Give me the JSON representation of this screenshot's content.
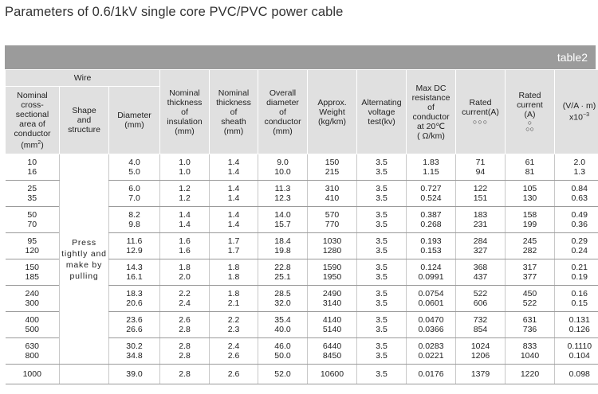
{
  "title": "Parameters of 0.6/1kV single core PVC/PVC power cable",
  "table_tag": "table2",
  "headers": {
    "wire_group": "Wire",
    "nominal_area": "Nominal cross-sectional area of conductor (mm²)",
    "shape": "Shape and structure",
    "diameter": "Diameter (mm)",
    "insulation": "Nominal thickness of insulation (mm)",
    "sheath": "Nominal thickness of sheath (mm)",
    "overall": "Overall diameter of conductor (mm)",
    "weight": "Approx. Weight (kg/km)",
    "voltage": "Alternating voltage test(kv)",
    "resistance": "Max DC resistance of conductor at 20℃ (Ω/km)",
    "rated_current_a": "Rated current(A)",
    "rated_current_b_line1": "Rated current",
    "rated_current_b_line2": "(A)",
    "va_line1": "(V/A · m)",
    "va_line2": "x10⁻³"
  },
  "shape_text": "Press tightly and make by pulling",
  "rows": [
    {
      "area": [
        "10",
        "16"
      ],
      "diameter": [
        "4.0",
        "5.0"
      ],
      "insulation": [
        "1.0",
        "1.0"
      ],
      "sheath": [
        "1.4",
        "1.4"
      ],
      "overall": [
        "9.0",
        "10.0"
      ],
      "weight": [
        "150",
        "215"
      ],
      "voltage": [
        "3.5",
        "3.5"
      ],
      "resistance": [
        "1.83",
        "1.15"
      ],
      "current_a": [
        "71",
        "94"
      ],
      "current_b": [
        "61",
        "81"
      ],
      "va": [
        "2.0",
        "1.3"
      ]
    },
    {
      "area": [
        "25",
        "35"
      ],
      "diameter": [
        "6.0",
        "7.0"
      ],
      "insulation": [
        "1.2",
        "1.2"
      ],
      "sheath": [
        "1.4",
        "1.4"
      ],
      "overall": [
        "11.3",
        "12.3"
      ],
      "weight": [
        "310",
        "410"
      ],
      "voltage": [
        "3.5",
        "3.5"
      ],
      "resistance": [
        "0.727",
        "0.524"
      ],
      "current_a": [
        "122",
        "151"
      ],
      "current_b": [
        "105",
        "130"
      ],
      "va": [
        "0.84",
        "0.63"
      ]
    },
    {
      "area": [
        "50",
        "70"
      ],
      "diameter": [
        "8.2",
        "9.8"
      ],
      "insulation": [
        "1.4",
        "1.4"
      ],
      "sheath": [
        "1.4",
        "1.4"
      ],
      "overall": [
        "14.0",
        "15.7"
      ],
      "weight": [
        "570",
        "770"
      ],
      "voltage": [
        "3.5",
        "3.5"
      ],
      "resistance": [
        "0.387",
        "0.268"
      ],
      "current_a": [
        "183",
        "231"
      ],
      "current_b": [
        "158",
        "199"
      ],
      "va": [
        "0.49",
        "0.36"
      ]
    },
    {
      "area": [
        "95",
        "120"
      ],
      "diameter": [
        "11.6",
        "12.9"
      ],
      "insulation": [
        "1.6",
        "1.6"
      ],
      "sheath": [
        "1.7",
        "1.7"
      ],
      "overall": [
        "18.4",
        "19.8"
      ],
      "weight": [
        "1030",
        "1280"
      ],
      "voltage": [
        "3.5",
        "3.5"
      ],
      "resistance": [
        "0.193",
        "0.153"
      ],
      "current_a": [
        "284",
        "327"
      ],
      "current_b": [
        "245",
        "282"
      ],
      "va": [
        "0.29",
        "0.24"
      ]
    },
    {
      "area": [
        "150",
        "185"
      ],
      "diameter": [
        "14.3",
        "16.1"
      ],
      "insulation": [
        "1.8",
        "2.0"
      ],
      "sheath": [
        "1.8",
        "1.8"
      ],
      "overall": [
        "22.8",
        "25.1"
      ],
      "weight": [
        "1590",
        "1950"
      ],
      "voltage": [
        "3.5",
        "3.5"
      ],
      "resistance": [
        "0.124",
        "0.0991"
      ],
      "current_a": [
        "368",
        "437"
      ],
      "current_b": [
        "317",
        "377"
      ],
      "va": [
        "0.21",
        "0.19"
      ]
    },
    {
      "area": [
        "240",
        "300"
      ],
      "diameter": [
        "18.3",
        "20.6"
      ],
      "insulation": [
        "2.2",
        "2.4"
      ],
      "sheath": [
        "1.8",
        "2.1"
      ],
      "overall": [
        "28.5",
        "32.0"
      ],
      "weight": [
        "2490",
        "3140"
      ],
      "voltage": [
        "3.5",
        "3.5"
      ],
      "resistance": [
        "0.0754",
        "0.0601"
      ],
      "current_a": [
        "522",
        "606"
      ],
      "current_b": [
        "450",
        "522"
      ],
      "va": [
        "0.16",
        "0.15"
      ]
    },
    {
      "area": [
        "400",
        "500"
      ],
      "diameter": [
        "23.6",
        "26.6"
      ],
      "insulation": [
        "2.6",
        "2.8"
      ],
      "sheath": [
        "2.2",
        "2.3"
      ],
      "overall": [
        "35.4",
        "40.0"
      ],
      "weight": [
        "4140",
        "5140"
      ],
      "voltage": [
        "3.5",
        "3.5"
      ],
      "resistance": [
        "0.0470",
        "0.0366"
      ],
      "current_a": [
        "732",
        "854"
      ],
      "current_b": [
        "631",
        "736"
      ],
      "va": [
        "0.131",
        "0.126"
      ]
    },
    {
      "area": [
        "630",
        "800"
      ],
      "diameter": [
        "30.2",
        "34.8"
      ],
      "insulation": [
        "2.8",
        "2.8"
      ],
      "sheath": [
        "2.4",
        "2.6"
      ],
      "overall": [
        "46.0",
        "50.0"
      ],
      "weight": [
        "6440",
        "8450"
      ],
      "voltage": [
        "3.5",
        "3.5"
      ],
      "resistance": [
        "0.0283",
        "0.0221"
      ],
      "current_a": [
        "1024",
        "1206"
      ],
      "current_b": [
        "833",
        "1040"
      ],
      "va": [
        "0.1110",
        "0.104"
      ]
    },
    {
      "area": [
        "1000"
      ],
      "diameter": [
        "39.0"
      ],
      "insulation": [
        "2.8"
      ],
      "sheath": [
        "2.6"
      ],
      "overall": [
        "52.0"
      ],
      "weight": [
        "10600"
      ],
      "voltage": [
        "3.5"
      ],
      "resistance": [
        "0.0176"
      ],
      "current_a": [
        "1379"
      ],
      "current_b": [
        "1220"
      ],
      "va": [
        "0.098"
      ]
    }
  ]
}
